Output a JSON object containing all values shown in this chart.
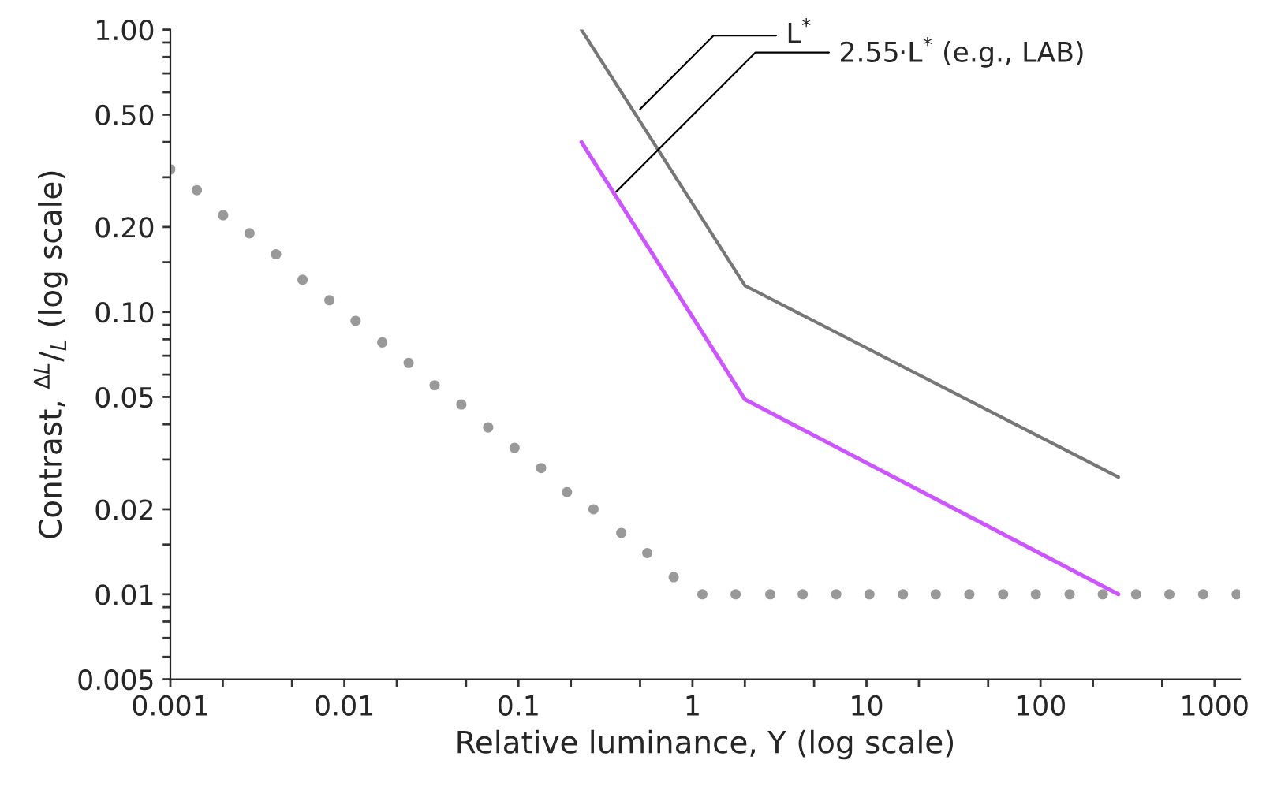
{
  "chart_data": {
    "type": "line",
    "xlabel": "Relative luminance, Y (log scale)",
    "ylabel": "Contrast, $^{ΔL}$/$_{L}$ (log scale)",
    "log": "xy",
    "grid": false,
    "legend": false,
    "marker": "none",
    "line_style": "solid",
    "xlim": [
      0.001,
      1400
    ],
    "ylim": [
      0.005,
      1.0
    ],
    "xticks": [
      0.001,
      {
        "value": 0.002,
        "label": null
      },
      {
        "value": 0.005,
        "label": null
      },
      0.01,
      {
        "value": 0.02,
        "label": null
      },
      {
        "value": 0.05,
        "label": null
      },
      0.1,
      {
        "value": 0.2,
        "label": null
      },
      {
        "value": 0.5,
        "label": null
      },
      1,
      {
        "value": 2,
        "label": null
      },
      {
        "value": 5,
        "label": null
      },
      10,
      {
        "value": 20,
        "label": null
      },
      {
        "value": 50,
        "label": null
      },
      100,
      {
        "value": 200,
        "label": null
      },
      {
        "value": 500,
        "label": null
      },
      1000
    ],
    "yticks": [
      {
        "value": 1.0,
        "label": "1.00"
      },
      {
        "value": 0.9,
        "label": null
      },
      {
        "value": 0.8,
        "label": null
      },
      {
        "value": 0.7,
        "label": null
      },
      {
        "value": 0.6,
        "label": null
      },
      {
        "value": 0.5,
        "label": "0.50"
      },
      {
        "value": 0.4,
        "label": null
      },
      {
        "value": 0.3,
        "label": null
      },
      {
        "value": 0.2,
        "label": "0.20"
      },
      {
        "value": 0.15,
        "label": null
      },
      {
        "value": 0.1,
        "label": "0.10"
      },
      {
        "value": 0.09,
        "label": null
      },
      {
        "value": 0.08,
        "label": null
      },
      {
        "value": 0.07,
        "label": null
      },
      {
        "value": 0.06,
        "label": null
      },
      0.05,
      {
        "value": 0.04,
        "label": null
      },
      {
        "value": 0.03,
        "label": null
      },
      0.02,
      {
        "value": 0.015,
        "label": null
      },
      0.01,
      {
        "value": 0.009,
        "label": null
      },
      {
        "value": 0.008,
        "label": null
      },
      {
        "value": 0.007,
        "label": null
      },
      {
        "value": 0.006,
        "label": null
      },
      0.005
    ],
    "series": [
      {
        "type": "scatter",
        "marker": "circle",
        "color": "#999999",
        "x": [
          0.001,
          0.00142,
          0.00201,
          0.00285,
          0.00405,
          0.00575,
          0.0082,
          0.0116,
          0.0165,
          0.0234,
          0.033,
          0.047,
          0.067,
          0.095,
          0.135,
          0.19,
          0.27,
          0.39,
          0.55,
          0.78,
          1.14,
          1.77,
          2.8,
          4.3,
          6.7,
          10.4,
          16.2,
          25,
          39,
          61,
          94,
          147,
          228,
          354,
          550,
          860,
          1340
        ],
        "values": [
          0.32,
          0.27,
          0.22,
          0.19,
          0.16,
          0.13,
          0.11,
          0.093,
          0.078,
          0.066,
          0.055,
          0.047,
          0.039,
          0.033,
          0.028,
          0.023,
          0.02,
          0.0165,
          0.014,
          0.0115,
          0.01,
          0.01,
          0.01,
          0.01,
          0.01,
          0.01,
          0.01,
          0.01,
          0.01,
          0.01,
          0.01,
          0.01,
          0.01,
          0.01,
          0.01,
          0.01,
          0.01
        ]
      },
      {
        "color": "#777777",
        "x": [
          0.23,
          2.0,
          280
        ],
        "values": [
          1.0,
          0.124,
          0.026
        ]
      },
      {
        "color": "#cc55ff",
        "x": [
          0.23,
          2.0,
          280
        ],
        "values": [
          0.4,
          0.049,
          0.01
        ]
      }
    ],
    "annotations": [
      {
        "text": "L$^{*}$",
        "x": 0.48,
        "y": 0.51
      },
      {
        "text": "2.55·L$^{*}$ (e.g., LAB)",
        "x": 0.35,
        "y": 0.26
      }
    ]
  }
}
